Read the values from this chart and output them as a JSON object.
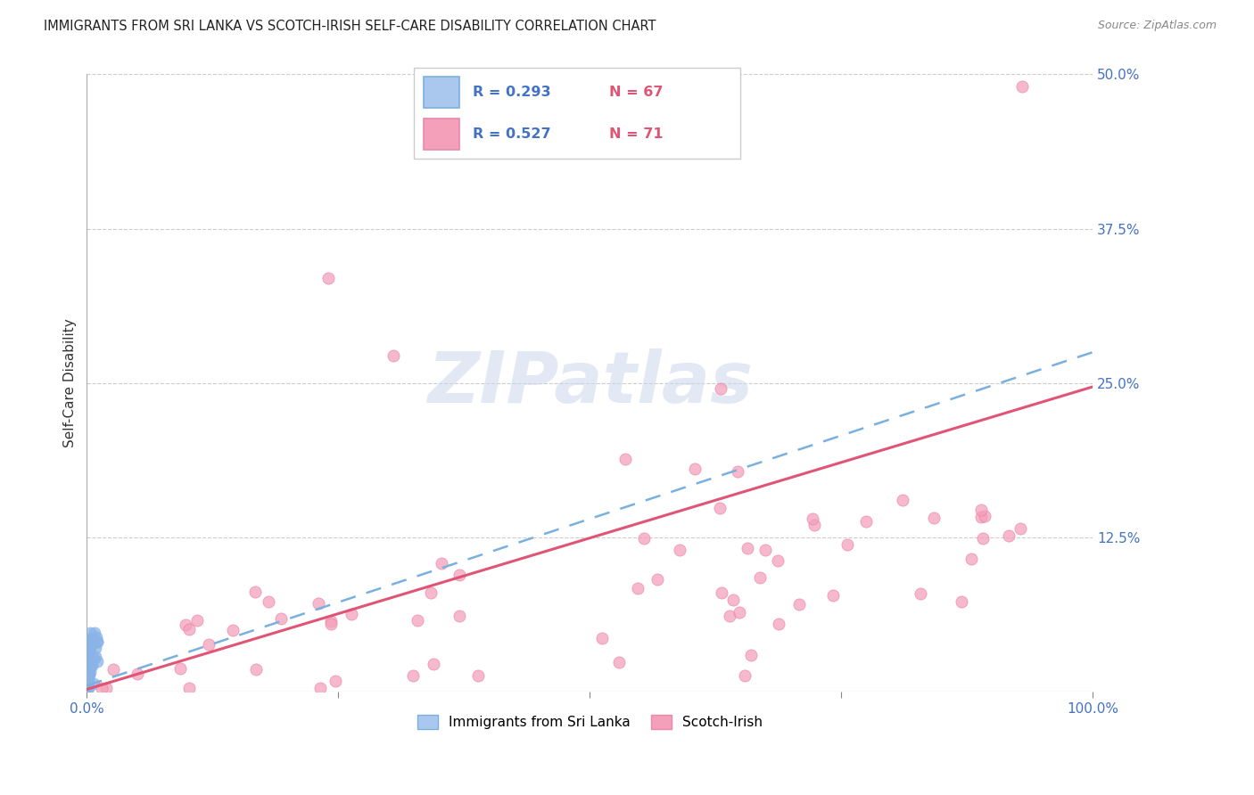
{
  "title": "IMMIGRANTS FROM SRI LANKA VS SCOTCH-IRISH SELF-CARE DISABILITY CORRELATION CHART",
  "source": "Source: ZipAtlas.com",
  "ylabel": "Self-Care Disability",
  "xlim": [
    0.0,
    1.0
  ],
  "ylim": [
    0.0,
    0.5
  ],
  "xticks": [
    0.0,
    0.25,
    0.5,
    0.75,
    1.0
  ],
  "xticklabels": [
    "0.0%",
    "",
    "",
    "",
    "100.0%"
  ],
  "ytick_positions": [
    0.0,
    0.125,
    0.25,
    0.375,
    0.5
  ],
  "ytick_labels": [
    "",
    "12.5%",
    "25.0%",
    "37.5%",
    "50.0%"
  ],
  "legend_r1": "R = 0.293",
  "legend_n1": "N = 67",
  "legend_r2": "R = 0.527",
  "legend_n2": "N = 71",
  "color_blue": "#8ab4e8",
  "color_pink": "#f4a0bb",
  "color_trend_blue": "#7ab0e0",
  "color_trend_pink": "#e05575",
  "watermark": "ZIPatlas",
  "blue_intercept": 0.005,
  "blue_slope": 0.27,
  "pink_intercept": 0.002,
  "pink_slope": 0.245
}
